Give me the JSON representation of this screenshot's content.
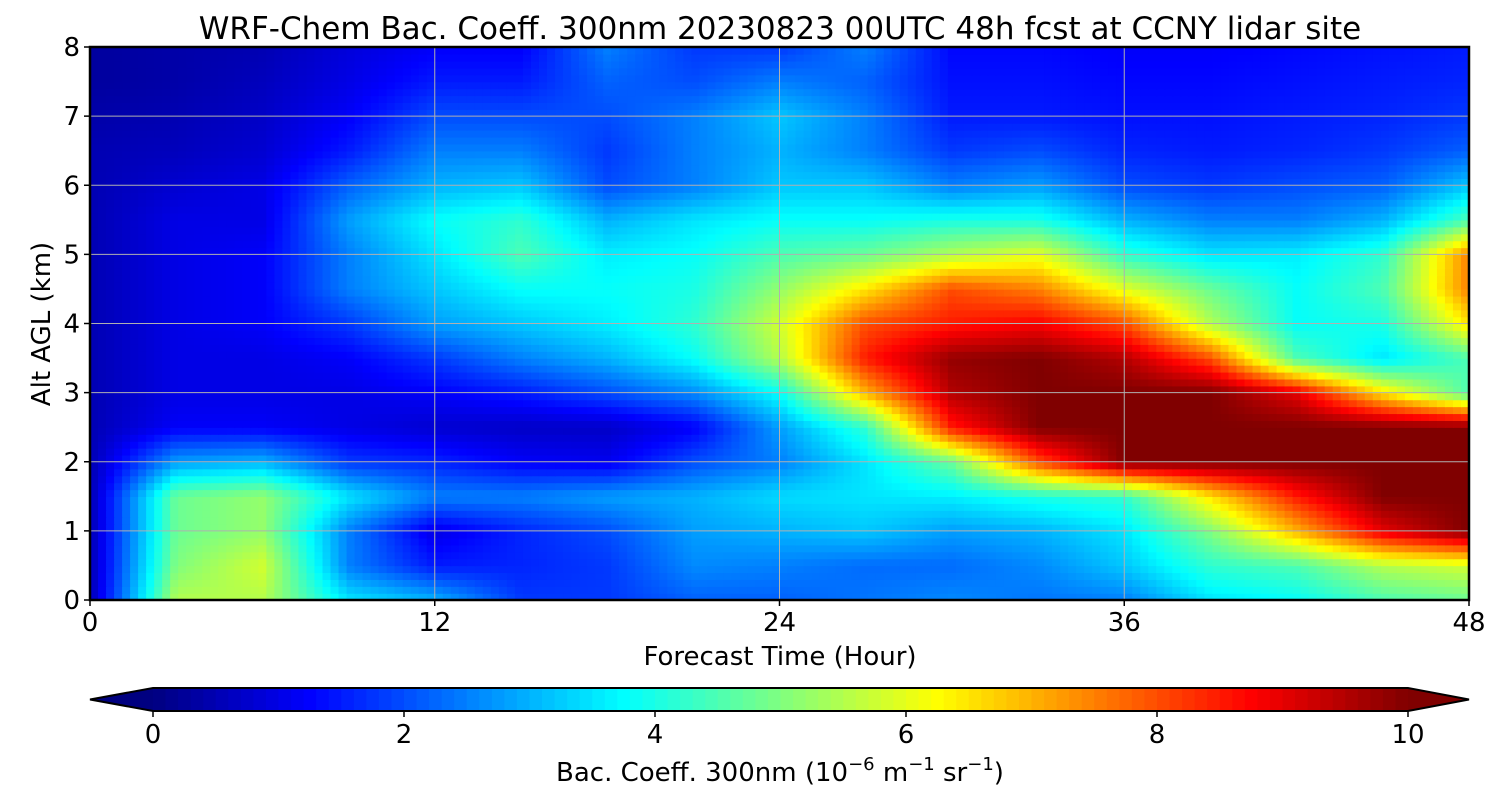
{
  "chart_data": {
    "type": "heatmap",
    "title": "WRF-Chem Bac. Coeff. 300nm  20230823 00UTC 48h fcst at CCNY lidar site",
    "xlabel": "Forecast Time (Hour)",
    "ylabel": "Alt AGL (km)",
    "xlim": [
      0,
      48
    ],
    "ylim": [
      0,
      8
    ],
    "xticks": [
      "0",
      "12",
      "24",
      "36",
      "48"
    ],
    "yticks": [
      "0",
      "1",
      "2",
      "3",
      "4",
      "5",
      "6",
      "7",
      "8"
    ],
    "grid": true,
    "colormap": "jet",
    "colorbar": {
      "label_main": "Bac. Coeff. 300nm  (10",
      "label_exp1": "−6",
      "label_mid": " m",
      "label_exp2": "−1",
      "label_mid2": " sr",
      "label_exp3": "−1",
      "label_end": ")",
      "range": [
        0,
        10
      ],
      "ticks": [
        "0",
        "2",
        "4",
        "6",
        "8",
        "10"
      ],
      "extend": "both",
      "placement": "bottom"
    },
    "x": [
      0,
      3,
      6,
      9,
      12,
      15,
      18,
      21,
      24,
      27,
      30,
      33,
      36,
      39,
      42,
      45,
      48
    ],
    "y": [
      0,
      0.5,
      1,
      1.5,
      2,
      2.5,
      3,
      3.5,
      4,
      4.5,
      5,
      5.5,
      6,
      6.5,
      7,
      7.5,
      8
    ],
    "z": [
      [
        0.5,
        5.5,
        5.5,
        3.5,
        3.0,
        1.8,
        1.8,
        2.2,
        2.2,
        2.4,
        2.6,
        2.4,
        2.5,
        3.5,
        3.8,
        4.5,
        4.8
      ],
      [
        0.5,
        5.0,
        5.8,
        2.5,
        1.5,
        1.6,
        1.8,
        2.6,
        2.5,
        2.3,
        2.3,
        2.6,
        3.2,
        4.2,
        4.5,
        5.5,
        5.8
      ],
      [
        0.5,
        4.8,
        5.2,
        2.5,
        1.0,
        1.6,
        2.0,
        2.8,
        3.0,
        3.2,
        2.8,
        3.0,
        3.5,
        5.0,
        7.0,
        9.0,
        10.0
      ],
      [
        0.5,
        4.8,
        5.2,
        3.5,
        2.5,
        2.5,
        2.8,
        3.0,
        3.4,
        3.5,
        3.6,
        4.0,
        4.2,
        6.5,
        8.5,
        10.0,
        10.0
      ],
      [
        0.5,
        2.8,
        3.0,
        1.8,
        1.6,
        1.2,
        1.1,
        2.0,
        2.5,
        3.5,
        4.8,
        8.0,
        10.0,
        10.0,
        10.0,
        10.0,
        10.0
      ],
      [
        0.5,
        1.2,
        1.2,
        1.0,
        0.8,
        0.7,
        0.7,
        1.2,
        2.8,
        4.2,
        8.5,
        10.0,
        10.0,
        10.0,
        10.0,
        10.0,
        10.0
      ],
      [
        0.5,
        1.0,
        1.0,
        1.0,
        1.2,
        1.5,
        2.0,
        2.6,
        3.8,
        7.0,
        9.5,
        10.0,
        10.0,
        10.0,
        9.0,
        6.5,
        4.5
      ],
      [
        0.5,
        1.0,
        1.0,
        1.2,
        1.8,
        2.5,
        3.0,
        3.8,
        5.5,
        8.5,
        9.8,
        10.0,
        9.5,
        8.0,
        4.5,
        3.5,
        4.5
      ],
      [
        0.5,
        1.0,
        1.2,
        1.8,
        2.8,
        3.2,
        3.6,
        4.2,
        5.8,
        8.0,
        8.5,
        8.8,
        8.0,
        5.5,
        3.8,
        4.0,
        6.5
      ],
      [
        0.5,
        1.0,
        1.2,
        2.5,
        3.2,
        3.8,
        3.8,
        4.0,
        5.2,
        6.5,
        8.0,
        7.5,
        6.0,
        4.8,
        3.8,
        4.5,
        7.5
      ],
      [
        0.5,
        1.0,
        1.2,
        2.5,
        3.5,
        4.5,
        3.6,
        3.8,
        4.5,
        4.8,
        5.5,
        6.0,
        4.2,
        3.5,
        3.6,
        4.2,
        7.5
      ],
      [
        0.5,
        1.0,
        1.0,
        2.8,
        3.8,
        4.2,
        3.0,
        3.5,
        3.8,
        3.8,
        4.0,
        4.0,
        3.0,
        2.5,
        2.5,
        3.0,
        4.5
      ],
      [
        0.5,
        0.8,
        1.0,
        2.2,
        3.0,
        3.2,
        2.0,
        2.5,
        3.2,
        3.2,
        2.5,
        2.8,
        2.0,
        1.8,
        2.0,
        2.2,
        3.2
      ],
      [
        0.5,
        0.6,
        0.8,
        1.5,
        2.5,
        2.5,
        1.8,
        2.5,
        3.0,
        2.5,
        1.8,
        2.0,
        1.6,
        1.5,
        1.6,
        1.8,
        2.2
      ],
      [
        0.4,
        0.5,
        0.7,
        1.2,
        2.0,
        2.0,
        2.0,
        2.5,
        3.2,
        2.5,
        1.5,
        1.5,
        1.4,
        1.4,
        1.5,
        1.6,
        1.8
      ],
      [
        0.3,
        0.4,
        0.6,
        1.0,
        1.5,
        1.5,
        2.2,
        2.0,
        2.5,
        2.2,
        1.4,
        1.4,
        1.3,
        1.3,
        1.4,
        1.5,
        1.6
      ],
      [
        0.3,
        0.4,
        0.5,
        0.9,
        1.2,
        1.2,
        2.5,
        1.8,
        1.8,
        2.5,
        1.3,
        1.3,
        1.2,
        1.2,
        1.3,
        1.4,
        1.5
      ]
    ]
  }
}
